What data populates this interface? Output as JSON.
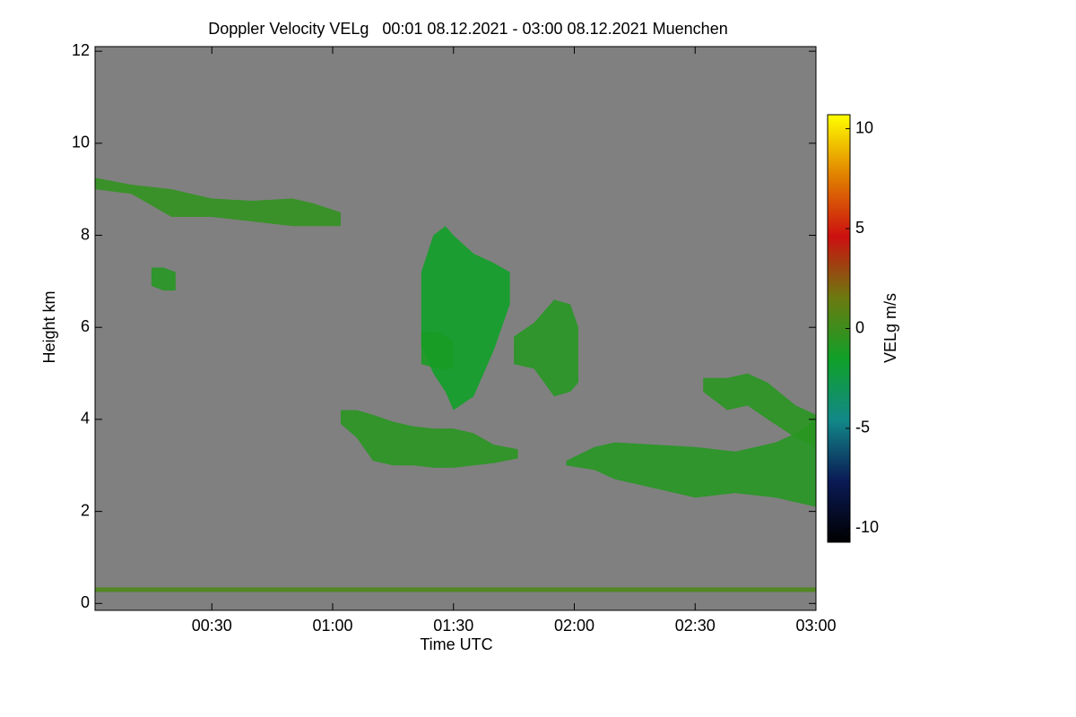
{
  "chart_data": {
    "type": "heatmap",
    "title": "Doppler Velocity VELg   00:01 08.12.2021 - 03:00 08.12.2021 Muenchen",
    "x_label": "Time UTC",
    "y_label": "Height km",
    "colorbar_label": "VELg m/s",
    "xlim": [
      1,
      180
    ],
    "xticks": [
      {
        "value": 30,
        "label": "00:30"
      },
      {
        "value": 60,
        "label": "01:00"
      },
      {
        "value": 90,
        "label": "01:30"
      },
      {
        "value": 120,
        "label": "02:00"
      },
      {
        "value": 150,
        "label": "02:30"
      },
      {
        "value": 180,
        "label": "03:00"
      }
    ],
    "ylim": [
      -0.15,
      12.1
    ],
    "yticks": [
      0,
      2,
      4,
      6,
      8,
      10,
      12
    ],
    "clim": [
      -10.7,
      10.7
    ],
    "cticks": [
      10,
      5,
      0,
      -5,
      -10
    ],
    "background": "#808080",
    "colormap": [
      "#000000",
      "#0a1a55",
      "#128888",
      "#10a028",
      "#6b7a10",
      "#cc1010",
      "#e08000",
      "#ffff00"
    ],
    "echoes": [
      {
        "time": [
          1,
          10,
          20,
          30,
          40,
          50,
          55,
          62
        ],
        "top": [
          9.25,
          9.1,
          9.0,
          8.8,
          8.75,
          8.8,
          8.7,
          8.5
        ],
        "base": [
          9.0,
          8.9,
          8.4,
          8.4,
          8.3,
          8.2,
          8.2,
          8.2
        ],
        "velocity": -0.4
      },
      {
        "time": [
          15,
          18,
          21
        ],
        "top": [
          7.3,
          7.3,
          7.2
        ],
        "base": [
          6.9,
          6.8,
          6.8
        ],
        "velocity": -0.8
      },
      {
        "time": [
          82,
          85,
          88,
          90,
          95,
          100,
          104
        ],
        "top": [
          7.2,
          8.0,
          8.2,
          8.0,
          7.6,
          7.4,
          7.2
        ],
        "base": [
          5.6,
          5.0,
          4.6,
          4.2,
          4.5,
          5.5,
          6.5
        ],
        "velocity": -1.5
      },
      {
        "time": [
          82,
          86,
          90
        ],
        "top": [
          5.9,
          5.9,
          5.7
        ],
        "base": [
          5.2,
          5.1,
          5.1
        ],
        "velocity": -1.2
      },
      {
        "time": [
          105,
          110,
          115,
          119,
          121
        ],
        "top": [
          5.8,
          6.1,
          6.6,
          6.5,
          6.0
        ],
        "base": [
          5.2,
          5.1,
          4.5,
          4.6,
          4.8
        ],
        "velocity": -0.8
      },
      {
        "time": [
          62,
          66,
          70,
          75,
          80,
          85,
          90,
          95,
          100,
          106
        ],
        "top": [
          4.2,
          4.2,
          4.1,
          3.95,
          3.85,
          3.8,
          3.8,
          3.7,
          3.45,
          3.35
        ],
        "base": [
          3.9,
          3.6,
          3.1,
          3.0,
          3.0,
          2.95,
          2.95,
          3.0,
          3.05,
          3.15
        ],
        "velocity": -0.7
      },
      {
        "time": [
          118,
          125,
          130,
          140,
          150,
          160,
          170,
          175,
          180
        ],
        "top": [
          3.1,
          3.4,
          3.5,
          3.45,
          3.4,
          3.3,
          3.5,
          3.7,
          4.0
        ],
        "base": [
          3.0,
          2.9,
          2.7,
          2.5,
          2.3,
          2.4,
          2.3,
          2.2,
          2.1
        ],
        "velocity": -0.8
      },
      {
        "time": [
          152,
          158,
          163,
          168,
          175,
          180
        ],
        "top": [
          4.9,
          4.9,
          5.0,
          4.8,
          4.3,
          4.1
        ],
        "base": [
          4.6,
          4.2,
          4.3,
          4.0,
          3.6,
          3.4
        ],
        "velocity": -0.7
      },
      {
        "time": [
          1,
          180
        ],
        "top": [
          0.35,
          0.35
        ],
        "base": [
          0.25,
          0.25
        ],
        "velocity": 0.5
      }
    ]
  }
}
